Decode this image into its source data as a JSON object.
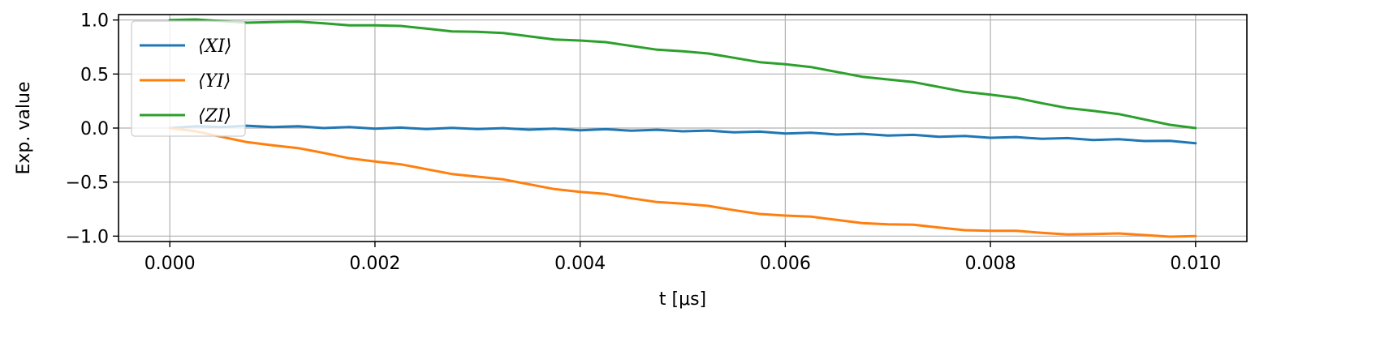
{
  "chart_data": {
    "type": "line",
    "xlabel": "t [μs]",
    "ylabel": "Exp. value",
    "xlim": [
      -0.0005,
      0.0105
    ],
    "ylim": [
      -1.05,
      1.05
    ],
    "xticks": [
      0.0,
      0.002,
      0.004,
      0.006,
      0.008,
      0.01
    ],
    "xtick_labels": [
      "0.000",
      "0.002",
      "0.004",
      "0.006",
      "0.008",
      "0.010"
    ],
    "yticks": [
      1.0,
      0.5,
      0.0,
      -0.5,
      -1.0
    ],
    "ytick_labels": [
      "1.0",
      "0.5",
      "0.0",
      "−0.5",
      "−1.0"
    ],
    "grid": true,
    "legend_position": "top-left",
    "series": [
      {
        "name": "⟨XI⟩",
        "color": "#1f77b4",
        "x": [
          0.0,
          0.0005,
          0.001,
          0.0015,
          0.002,
          0.0025,
          0.003,
          0.0035,
          0.004,
          0.0045,
          0.005,
          0.0055,
          0.006,
          0.0065,
          0.007,
          0.0075,
          0.008,
          0.0085,
          0.009,
          0.0095,
          0.01
        ],
        "values": [
          0.0,
          0.01,
          0.01,
          0.0,
          -0.005,
          -0.01,
          -0.01,
          -0.015,
          -0.02,
          -0.025,
          -0.03,
          -0.04,
          -0.05,
          -0.06,
          -0.07,
          -0.08,
          -0.09,
          -0.1,
          -0.11,
          -0.12,
          -0.14
        ]
      },
      {
        "name": "⟨YI⟩",
        "color": "#ff7f0e",
        "x": [
          0.0,
          0.0005,
          0.001,
          0.0015,
          0.002,
          0.0025,
          0.003,
          0.0035,
          0.004,
          0.0045,
          0.005,
          0.0055,
          0.006,
          0.0065,
          0.007,
          0.0075,
          0.008,
          0.0085,
          0.009,
          0.0095,
          0.01
        ],
        "values": [
          0.0,
          -0.08,
          -0.16,
          -0.23,
          -0.31,
          -0.38,
          -0.45,
          -0.52,
          -0.59,
          -0.65,
          -0.7,
          -0.76,
          -0.81,
          -0.85,
          -0.89,
          -0.92,
          -0.95,
          -0.97,
          -0.98,
          -0.99,
          -1.0
        ]
      },
      {
        "name": "⟨ZI⟩",
        "color": "#2ca02c",
        "x": [
          0.0,
          0.0005,
          0.001,
          0.0015,
          0.002,
          0.0025,
          0.003,
          0.0035,
          0.004,
          0.0045,
          0.005,
          0.0055,
          0.006,
          0.0065,
          0.007,
          0.0075,
          0.008,
          0.0085,
          0.009,
          0.0095,
          0.01
        ],
        "values": [
          1.0,
          0.99,
          0.98,
          0.97,
          0.95,
          0.92,
          0.89,
          0.85,
          0.81,
          0.76,
          0.71,
          0.65,
          0.59,
          0.52,
          0.45,
          0.38,
          0.31,
          0.23,
          0.16,
          0.08,
          0.0
        ]
      }
    ]
  }
}
